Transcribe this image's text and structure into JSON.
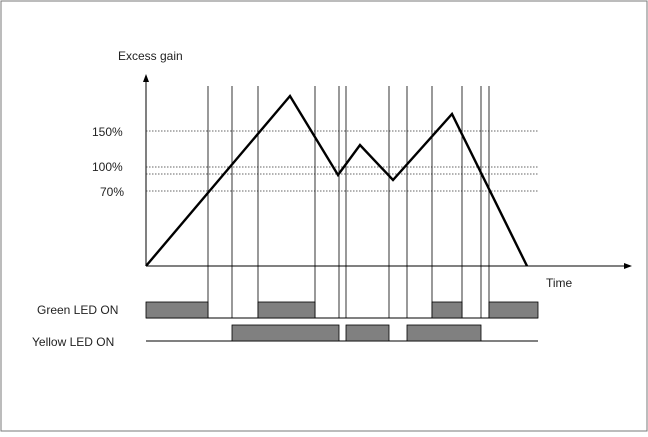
{
  "y_axis_label": "Excess gain",
  "x_axis_label": "Time",
  "threshold_labels": [
    "150%",
    "100%",
    "70%"
  ],
  "led_labels": {
    "green": "Green LED ON",
    "yellow": "Yellow LED ON"
  },
  "colors": {
    "line": "#000000",
    "led_bar_fill": "#808080",
    "frame": "#7a7a7a",
    "dotted_line": "#333333"
  }
}
